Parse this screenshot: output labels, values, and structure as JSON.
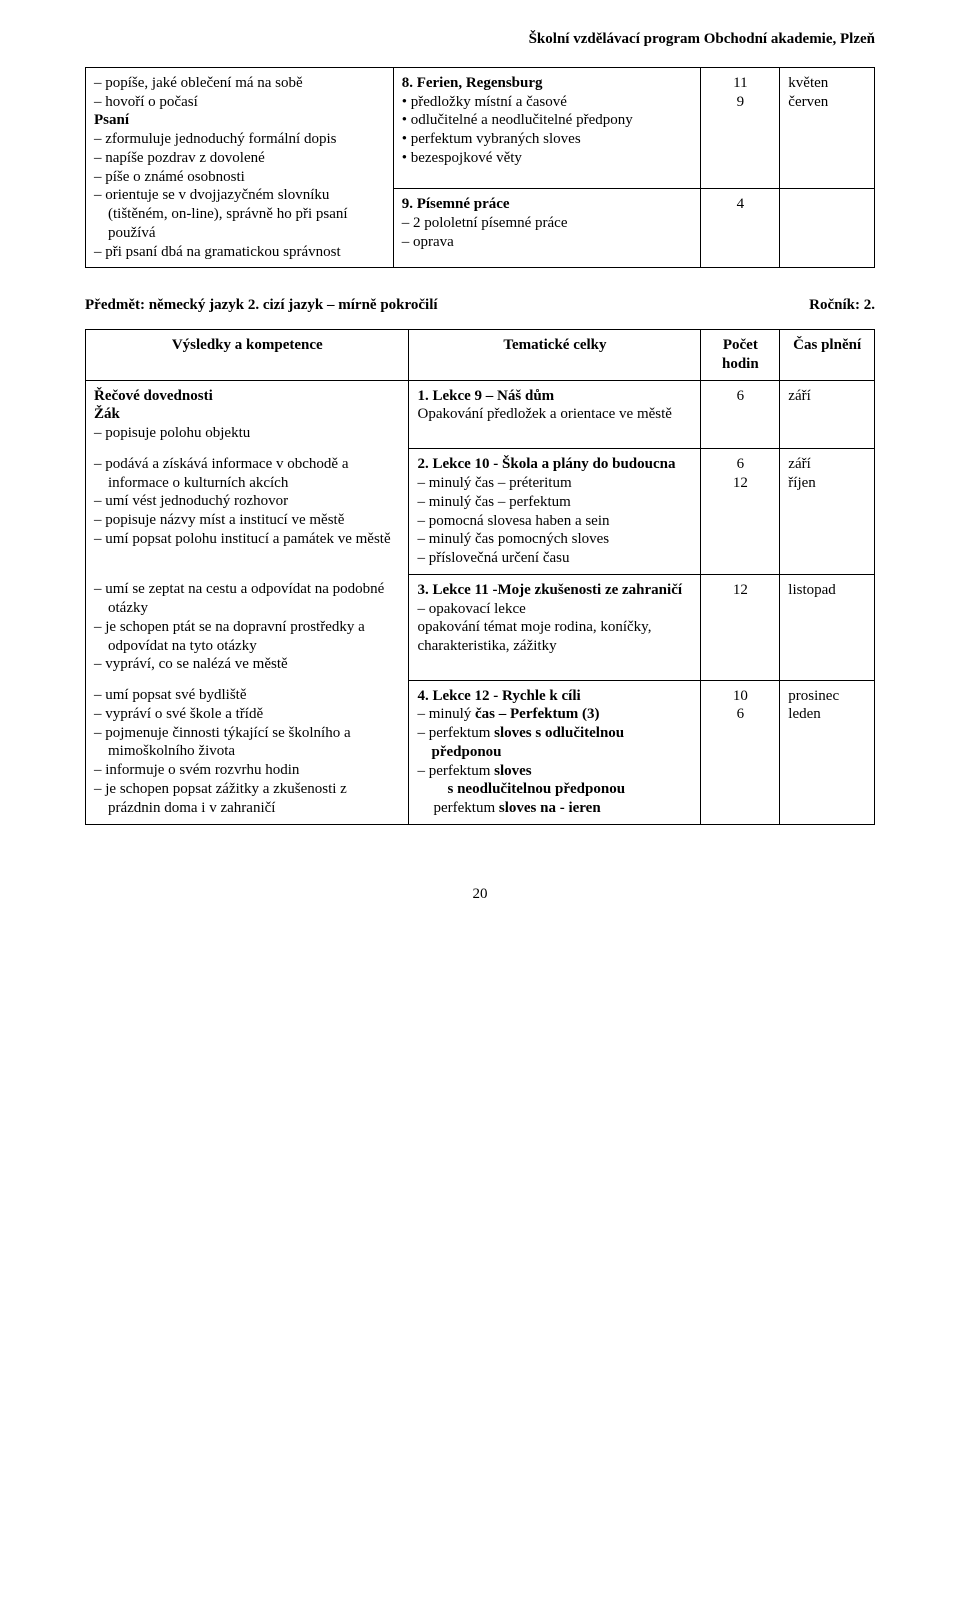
{
  "header_line": "Školní vzdělávací program Obchodní akademie, Plzeň",
  "table1": {
    "left_title": "Psaní",
    "left_lead": "popíše, jaké oblečení má na sobě",
    "left_items": [
      "hovoří o počasí",
      "zformuluje jednoduchý formální dopis",
      "napíše pozdrav z dovolené",
      "píše o známé osobnosti",
      "orientuje se v dvojjazyčném slovníku (tištěném, on-line), správně ho při psaní používá",
      "při psaní dbá na gramatickou správnost"
    ],
    "rowA": {
      "heading": "8. Ferien, Regensburg",
      "bullets": [
        "předložky místní a časové",
        "odlučitelné a neodlučitelné předpony",
        "perfektum vybraných sloves",
        "bezespojkové věty"
      ],
      "hours": [
        "11",
        "9"
      ],
      "months": [
        "květen",
        "červen"
      ]
    },
    "rowB": {
      "heading": "9. Písemné práce",
      "dashes": [
        "2 pololetní písemné práce",
        "oprava"
      ],
      "hours": [
        "4"
      ]
    }
  },
  "section": {
    "left": "Předmět: německý jazyk 2. cizí jazyk – mírně pokročilí",
    "right": "Ročník: 2."
  },
  "table2": {
    "head": [
      "Výsledky a kompetence",
      "Tematické celky",
      "Počet hodin",
      "Čas plnění"
    ],
    "left_block": {
      "title1": "Řečové dovednosti",
      "title2": "Žák",
      "items": [
        "popisuje polohu objektu",
        "podává a získává informace v obchodě a informace o kulturních akcích",
        "umí vést jednoduchý rozhovor",
        "popisuje názvy míst a institucí ve městě",
        "umí popsat polohu institucí a památek ve městě",
        "umí se zeptat na cestu a odpovídat na podobné otázky",
        "je schopen ptát se na dopravní prostředky a odpovídat na tyto otázky",
        "vypráví, co se nalézá ve městě",
        "umí popsat své bydliště",
        "vypráví o své škole a třídě",
        "pojmenuje činnosti týkající se školního a mimoškolního života",
        "informuje o svém rozvrhu hodin",
        "je schopen popsat zážitky a zkušenosti z prázdnin doma i v zahraničí"
      ]
    },
    "r1": {
      "heading": "1. Lekce 9 – Náš dům",
      "plain": "Opakování předložek a orientace ve městě",
      "hours": [
        "6"
      ],
      "months": [
        "září"
      ]
    },
    "r2": {
      "heading": "2. Lekce 10 - Škola a plány do budoucna",
      "dashes": [
        "minulý čas – préteritum",
        "minulý čas – perfektum",
        "pomocná slovesa haben a sein",
        "minulý čas pomocných sloves",
        "příslovečná určení času"
      ],
      "hours": [
        "6",
        "12"
      ],
      "months": [
        "září",
        "říjen"
      ]
    },
    "r3": {
      "heading": "3. Lekce 11 -Moje zkušenosti ze zahraničí",
      "dashes": [
        "opakovací lekce"
      ],
      "plain": "opakování témat moje rodina, koníčky, charakteristika, zážitky",
      "hours": [
        "12"
      ],
      "months": [
        "listopad"
      ]
    },
    "r4": {
      "heading": "4. Lekce 12 - Rychle k cíli",
      "line1_pre": "minulý ",
      "line1_bold": "čas – Perfektum (3)",
      "line2_pre": "perfektum ",
      "line2_bold": "sloves s odlučitelnou předponou",
      "line3_pre": "perfektum ",
      "line3_bold": "sloves",
      "line4_bold": "s neodlučitelnou předponou",
      "line5_pre": "perfektum ",
      "line5_bold": "sloves na - ieren",
      "hours": [
        "10",
        "6"
      ],
      "months": [
        "prosinec",
        "leden"
      ]
    }
  },
  "page_number": "20"
}
